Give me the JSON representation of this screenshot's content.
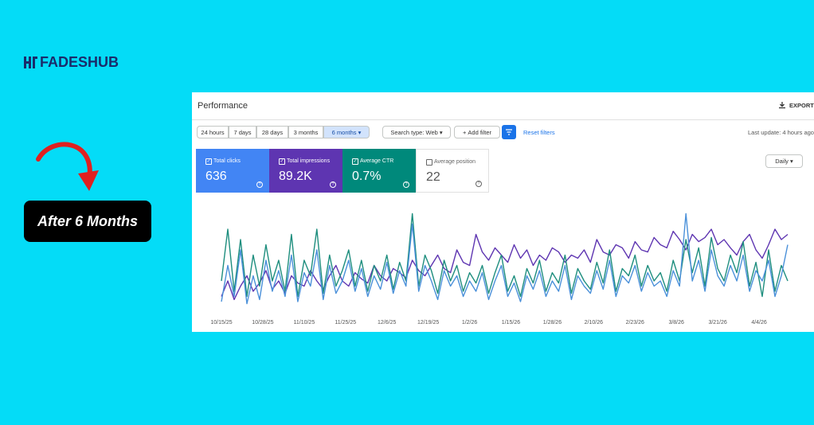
{
  "header": {
    "brand": "FADESHUB",
    "badge": "After 6 Months"
  },
  "window": {
    "title": "Performance",
    "export": "EXPORT",
    "ranges": [
      "24 hours",
      "7 days",
      "28 days",
      "3 months",
      "6 months"
    ],
    "selected_range": 4,
    "search_type": "Search type: Web",
    "add_filter": "Add filter",
    "reset": "Reset filters",
    "last_update": "Last update: 4 hours ago",
    "metrics": [
      {
        "label": "Total clicks",
        "value": "636",
        "color": "#4285f4",
        "checked": true
      },
      {
        "label": "Total impressions",
        "value": "89.2K",
        "color": "#5e35b1",
        "checked": true
      },
      {
        "label": "Average CTR",
        "value": "0.7%",
        "color": "#00897b",
        "checked": true
      },
      {
        "label": "Average position",
        "value": "22",
        "color": "#ffffff",
        "checked": false
      }
    ],
    "granularity": "Daily"
  },
  "chart_data": {
    "type": "line",
    "xlim": [
      0,
      89
    ],
    "ylim": [
      0,
      100
    ],
    "xticks": [
      {
        "value": 0,
        "label": "10/15/25"
      },
      {
        "value": 6.5,
        "label": "10/28/25"
      },
      {
        "value": 13,
        "label": "11/10/25"
      },
      {
        "value": 19.5,
        "label": "11/25/25"
      },
      {
        "value": 26,
        "label": "12/6/25"
      },
      {
        "value": 32.5,
        "label": "12/19/25"
      },
      {
        "value": 39,
        "label": "1/2/26"
      },
      {
        "value": 45.5,
        "label": "1/15/26"
      },
      {
        "value": 52,
        "label": "1/28/26"
      },
      {
        "value": 58.5,
        "label": "2/10/26"
      },
      {
        "value": 65,
        "label": "2/23/26"
      },
      {
        "value": 71.5,
        "label": "3/8/26"
      },
      {
        "value": 78,
        "label": "3/21/26"
      },
      {
        "value": 84.5,
        "label": "4/4/26"
      }
    ],
    "series": [
      {
        "color": "#5e35b1",
        "values": [
          15,
          30,
          12,
          25,
          35,
          20,
          28,
          40,
          22,
          30,
          18,
          35,
          28,
          25,
          40,
          30,
          22,
          35,
          45,
          30,
          25,
          38,
          32,
          28,
          45,
          35,
          30,
          42,
          38,
          33,
          50,
          40,
          35,
          45,
          55,
          42,
          38,
          60,
          48,
          45,
          75,
          58,
          50,
          62,
          55,
          48,
          65,
          52,
          60,
          45,
          55,
          50,
          62,
          58,
          48,
          55,
          52,
          60,
          48,
          70,
          58,
          55,
          65,
          62,
          52,
          68,
          60,
          58,
          72,
          65,
          62,
          78,
          70,
          60,
          75,
          68,
          72,
          80,
          65,
          70,
          62,
          55,
          68,
          75,
          60,
          52,
          65,
          80,
          70,
          75
        ]
      },
      {
        "color": "#1e8e7e",
        "values": [
          30,
          80,
          20,
          70,
          15,
          55,
          25,
          65,
          30,
          50,
          20,
          75,
          15,
          50,
          35,
          80,
          18,
          55,
          25,
          40,
          60,
          25,
          50,
          20,
          45,
          30,
          55,
          22,
          48,
          30,
          95,
          25,
          55,
          40,
          18,
          50,
          30,
          45,
          20,
          38,
          28,
          45,
          18,
          38,
          55,
          20,
          35,
          15,
          42,
          28,
          50,
          20,
          38,
          28,
          55,
          18,
          42,
          30,
          22,
          48,
          28,
          60,
          20,
          42,
          35,
          55,
          25,
          45,
          30,
          38,
          20,
          50,
          30,
          70,
          38,
          62,
          25,
          72,
          42,
          30,
          55,
          38,
          68,
          25,
          48,
          15,
          60,
          20,
          45,
          30
        ]
      },
      {
        "color": "#4a90d9",
        "values": [
          10,
          45,
          15,
          60,
          8,
          35,
          12,
          50,
          20,
          40,
          15,
          55,
          10,
          38,
          25,
          60,
          12,
          45,
          18,
          30,
          50,
          20,
          42,
          15,
          35,
          22,
          48,
          18,
          40,
          25,
          85,
          20,
          45,
          30,
          12,
          40,
          25,
          35,
          15,
          30,
          20,
          38,
          12,
          30,
          45,
          15,
          28,
          10,
          35,
          22,
          40,
          15,
          30,
          20,
          45,
          12,
          35,
          25,
          18,
          40,
          22,
          50,
          15,
          35,
          28,
          45,
          20,
          38,
          25,
          30,
          15,
          40,
          25,
          95,
          30,
          50,
          20,
          60,
          35,
          25,
          45,
          30,
          55,
          20,
          40,
          30,
          50,
          15,
          35,
          65
        ]
      }
    ]
  }
}
